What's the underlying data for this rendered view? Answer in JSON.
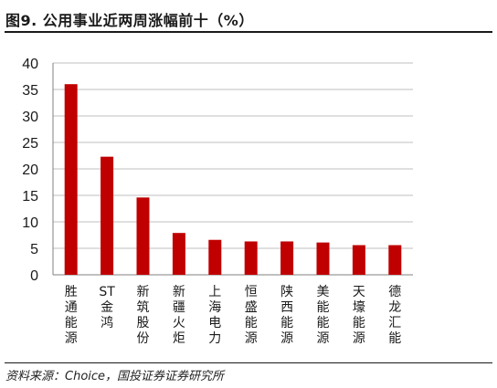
{
  "title": "图9. 公用事业近两周涨幅前十（%）",
  "source": "资料来源：Choice，国投证券证券研究所",
  "colors": {
    "bar": "#c00000",
    "grid": "#bfbfbf",
    "axis": "#808080"
  },
  "chart_data": {
    "type": "bar",
    "title": "图9. 公用事业近两周涨幅前十（%）",
    "categories": [
      "胜通能源",
      "ST金鸿",
      "新筑股份",
      "新疆火炬",
      "上海电力",
      "恒盛能源",
      "陕西能源",
      "美能能源",
      "天壕能源",
      "德龙汇能"
    ],
    "values": [
      36.0,
      22.3,
      14.6,
      7.9,
      6.6,
      6.3,
      6.3,
      6.1,
      5.6,
      5.6
    ],
    "ylim": [
      0,
      40
    ],
    "yticks": [
      0,
      5,
      10,
      15,
      20,
      25,
      30,
      35,
      40
    ],
    "xlabel": "",
    "ylabel": "",
    "grid": true,
    "legend": "none"
  }
}
